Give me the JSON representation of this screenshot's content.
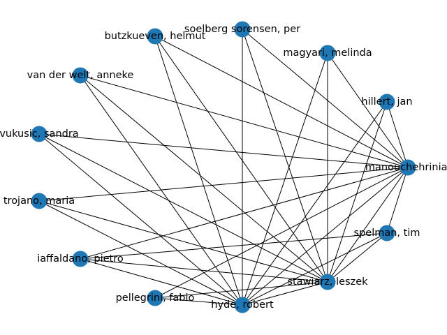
{
  "graph": {
    "node_color": "#1f77b4",
    "edge_color": "#000000",
    "nodes": [
      {
        "id": "manouchehrinia",
        "label": "manouchehrinia, "
      },
      {
        "id": "hillert",
        "label": "hillert, jan"
      },
      {
        "id": "magyari",
        "label": "magyari, melinda"
      },
      {
        "id": "soelberg",
        "label": "soelberg sorensen, per"
      },
      {
        "id": "butzkueven",
        "label": "butzkueven, helmut"
      },
      {
        "id": "vanderwelt",
        "label": "van der welt, anneke"
      },
      {
        "id": "vukusic",
        "label": "vukusic, sandra"
      },
      {
        "id": "trojano",
        "label": "trojano, maria"
      },
      {
        "id": "iaffaldano",
        "label": "iaffaldano, pietro"
      },
      {
        "id": "pellegrini",
        "label": "pellegrini, fabio"
      },
      {
        "id": "hyde",
        "label": "hyde, robert"
      },
      {
        "id": "stawiarz",
        "label": "stawiarz, leszek"
      },
      {
        "id": "spelman",
        "label": "spelman, tim"
      }
    ],
    "edges": [
      [
        "manouchehrinia",
        "hillert"
      ],
      [
        "manouchehrinia",
        "magyari"
      ],
      [
        "manouchehrinia",
        "soelberg"
      ],
      [
        "manouchehrinia",
        "butzkueven"
      ],
      [
        "manouchehrinia",
        "vanderwelt"
      ],
      [
        "manouchehrinia",
        "vukusic"
      ],
      [
        "manouchehrinia",
        "trojano"
      ],
      [
        "manouchehrinia",
        "iaffaldano"
      ],
      [
        "manouchehrinia",
        "pellegrini"
      ],
      [
        "manouchehrinia",
        "hyde"
      ],
      [
        "manouchehrinia",
        "stawiarz"
      ],
      [
        "manouchehrinia",
        "spelman"
      ],
      [
        "hillert",
        "hyde"
      ],
      [
        "hillert",
        "stawiarz"
      ],
      [
        "magyari",
        "hyde"
      ],
      [
        "magyari",
        "stawiarz"
      ],
      [
        "soelberg",
        "hyde"
      ],
      [
        "soelberg",
        "stawiarz"
      ],
      [
        "butzkueven",
        "hyde"
      ],
      [
        "butzkueven",
        "stawiarz"
      ],
      [
        "vanderwelt",
        "hyde"
      ],
      [
        "vanderwelt",
        "stawiarz"
      ],
      [
        "vukusic",
        "hyde"
      ],
      [
        "vukusic",
        "stawiarz"
      ],
      [
        "trojano",
        "hyde"
      ],
      [
        "trojano",
        "stawiarz"
      ],
      [
        "iaffaldano",
        "hyde"
      ],
      [
        "iaffaldano",
        "stawiarz"
      ],
      [
        "iaffaldano",
        "spelman"
      ],
      [
        "pellegrini",
        "hyde"
      ],
      [
        "pellegrini",
        "stawiarz"
      ],
      [
        "hyde",
        "stawiarz"
      ],
      [
        "hyde",
        "spelman"
      ],
      [
        "stawiarz",
        "spelman"
      ]
    ]
  }
}
